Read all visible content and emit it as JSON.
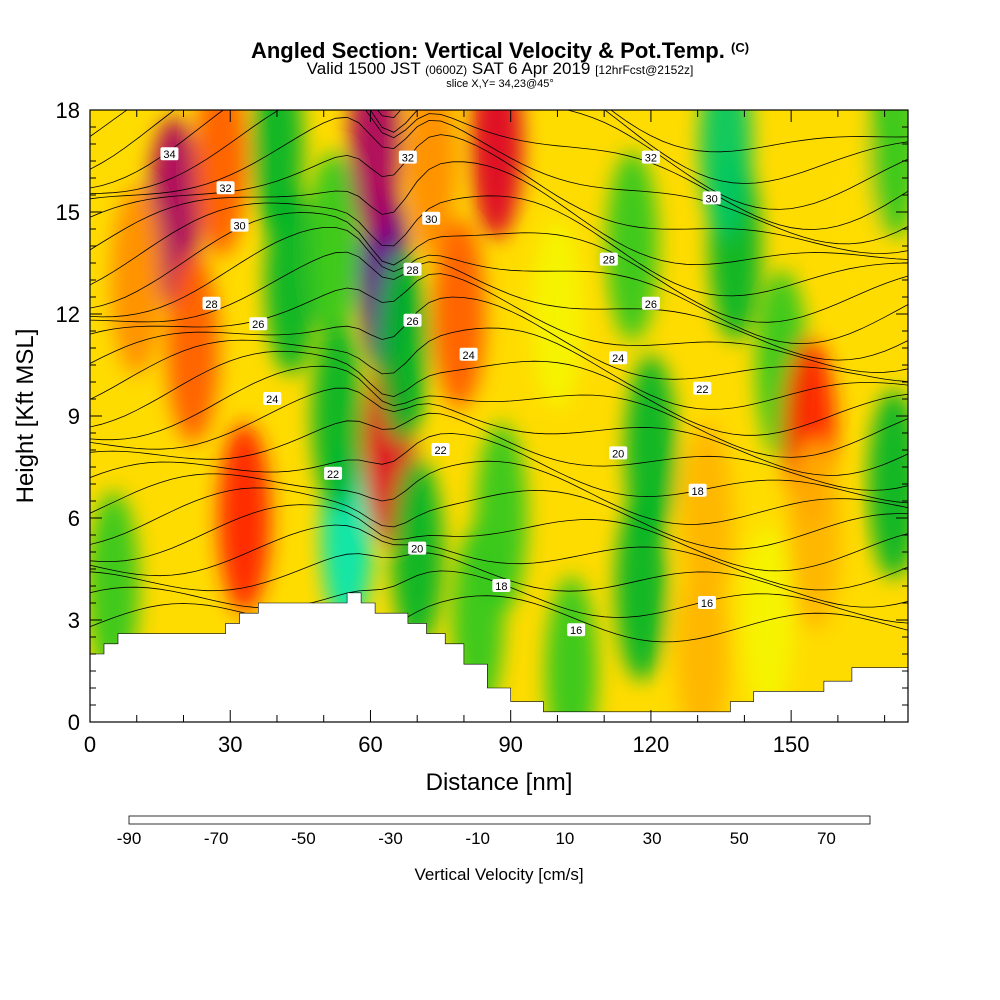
{
  "chart_data": {
    "type": "heatmap",
    "title": "Angled Section: Vertical Velocity & Pot.Temp.",
    "title_suffix": "(C)",
    "subtitle": {
      "valid_prefix": "Valid 1500 JST",
      "utc": "(0600Z)",
      "date": "SAT 6 Apr 2019",
      "forecast": "[12hrFcst@2152z]"
    },
    "slice": "slice X,Y= 34,23@45°",
    "xlabel": "Distance [nm]",
    "ylabel": "Height [Kft MSL]",
    "xlim": [
      0,
      175
    ],
    "ylim": [
      0,
      18
    ],
    "x_ticks": [
      0,
      30,
      60,
      90,
      120,
      150
    ],
    "y_ticks": [
      0,
      3,
      6,
      9,
      12,
      15,
      18
    ],
    "colorbar": {
      "label": "Vertical Velocity [cm/s]",
      "min": -90,
      "max": 80,
      "step": 10,
      "tick_labels": [
        -90,
        -70,
        -50,
        -30,
        -10,
        10,
        30,
        50,
        70
      ],
      "colors": [
        "#0000ff",
        "#0064ff",
        "#00b4ff",
        "#00e6ff",
        "#00e6b4",
        "#00c864",
        "#00b428",
        "#32c81e",
        "#96dc14",
        "#f5f500",
        "#ffdc00",
        "#ffb400",
        "#ff8c00",
        "#ff5a00",
        "#ff1e00",
        "#dc0028",
        "#aa0064",
        "#5a0096"
      ]
    },
    "terrain_kft": {
      "x": [
        0,
        3,
        6,
        10,
        20,
        29,
        32,
        36,
        45,
        52,
        55,
        58,
        61,
        65,
        68,
        72,
        76,
        80,
        85,
        90,
        97,
        110,
        123,
        129,
        137,
        142,
        152,
        157,
        163,
        175
      ],
      "y": [
        2.0,
        2.3,
        2.6,
        2.6,
        2.6,
        2.9,
        3.2,
        3.5,
        3.5,
        3.5,
        3.8,
        3.5,
        3.2,
        3.2,
        2.9,
        2.6,
        2.3,
        1.7,
        1.0,
        0.6,
        0.3,
        0.3,
        0.3,
        0.3,
        0.6,
        0.9,
        0.9,
        1.2,
        1.6,
        1.6
      ]
    },
    "velocity_cells": [
      {
        "x": 18,
        "y": 15.0,
        "value": 75
      },
      {
        "x": 22,
        "y": 11.0,
        "value": 45
      },
      {
        "x": 10,
        "y": 13.0,
        "value": 30
      },
      {
        "x": 28,
        "y": 16.5,
        "value": 40
      },
      {
        "x": 33,
        "y": 6.0,
        "value": 50
      },
      {
        "x": 43,
        "y": 13.0,
        "value": -25
      },
      {
        "x": 40,
        "y": 17.0,
        "value": -30
      },
      {
        "x": 52,
        "y": 14.0,
        "value": -20
      },
      {
        "x": 55,
        "y": 5.5,
        "value": -45
      },
      {
        "x": 53,
        "y": 9.0,
        "value": -25
      },
      {
        "x": 63,
        "y": 13.0,
        "value": 80
      },
      {
        "x": 64,
        "y": 8.0,
        "value": 65
      },
      {
        "x": 61,
        "y": 17.0,
        "value": 70
      },
      {
        "x": 67,
        "y": 11.0,
        "value": -30
      },
      {
        "x": 70,
        "y": 5.0,
        "value": -30
      },
      {
        "x": 73,
        "y": 16.5,
        "value": 35
      },
      {
        "x": 79,
        "y": 12.0,
        "value": 45
      },
      {
        "x": 87,
        "y": 17.0,
        "value": 60
      },
      {
        "x": 88,
        "y": 6.0,
        "value": -20
      },
      {
        "x": 83,
        "y": 3.0,
        "value": -15
      },
      {
        "x": 103,
        "y": 1.5,
        "value": -20
      },
      {
        "x": 118,
        "y": 4.0,
        "value": -25
      },
      {
        "x": 120,
        "y": 8.0,
        "value": -30
      },
      {
        "x": 116,
        "y": 14.0,
        "value": -15
      },
      {
        "x": 132,
        "y": 6.0,
        "value": 25
      },
      {
        "x": 131,
        "y": 2.0,
        "value": 20
      },
      {
        "x": 138,
        "y": 14.0,
        "value": -30
      },
      {
        "x": 136,
        "y": 17.0,
        "value": -40
      },
      {
        "x": 148,
        "y": 10.5,
        "value": -20
      },
      {
        "x": 154,
        "y": 8.5,
        "value": 55
      },
      {
        "x": 155,
        "y": 5.5,
        "value": 25
      },
      {
        "x": 163,
        "y": 15.0,
        "value": 15
      },
      {
        "x": 172,
        "y": 7.0,
        "value": -25
      },
      {
        "x": 172,
        "y": 17.0,
        "value": -20
      },
      {
        "x": 100,
        "y": 12.0,
        "value": 5
      },
      {
        "x": 145,
        "y": 3.0,
        "value": 5
      },
      {
        "x": 5,
        "y": 4.0,
        "value": -20
      }
    ],
    "contour_labels": [
      {
        "text": "34",
        "x": 17,
        "y": 16.7
      },
      {
        "text": "32",
        "x": 29,
        "y": 15.7
      },
      {
        "text": "30",
        "x": 32,
        "y": 14.6
      },
      {
        "text": "28",
        "x": 26,
        "y": 12.3
      },
      {
        "text": "26",
        "x": 36,
        "y": 11.7
      },
      {
        "text": "24",
        "x": 39,
        "y": 9.5
      },
      {
        "text": "22",
        "x": 52,
        "y": 7.3
      },
      {
        "text": "32",
        "x": 68,
        "y": 16.6
      },
      {
        "text": "30",
        "x": 73,
        "y": 14.8
      },
      {
        "text": "28",
        "x": 69,
        "y": 13.3
      },
      {
        "text": "26",
        "x": 69,
        "y": 11.8
      },
      {
        "text": "24",
        "x": 81,
        "y": 10.8
      },
      {
        "text": "22",
        "x": 75,
        "y": 8.0
      },
      {
        "text": "20",
        "x": 70,
        "y": 5.1
      },
      {
        "text": "18",
        "x": 88,
        "y": 4.0
      },
      {
        "text": "16",
        "x": 104,
        "y": 2.7
      },
      {
        "text": "32",
        "x": 120,
        "y": 16.6
      },
      {
        "text": "30",
        "x": 133,
        "y": 15.4
      },
      {
        "text": "28",
        "x": 111,
        "y": 13.6
      },
      {
        "text": "26",
        "x": 120,
        "y": 12.3
      },
      {
        "text": "24",
        "x": 113,
        "y": 10.7
      },
      {
        "text": "22",
        "x": 131,
        "y": 9.8
      },
      {
        "text": "20",
        "x": 113,
        "y": 7.9
      },
      {
        "text": "18",
        "x": 130,
        "y": 6.8
      },
      {
        "text": "16",
        "x": 132,
        "y": 3.5
      }
    ]
  }
}
